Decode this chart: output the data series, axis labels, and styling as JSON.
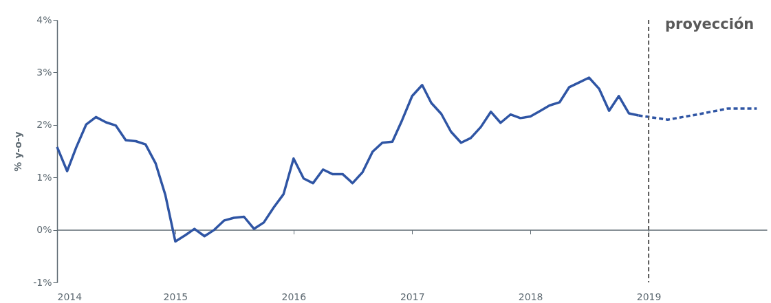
{
  "chart_data": {
    "type": "line",
    "ylabel": "% y-o-y",
    "xlim": [
      "2014-01",
      "2020-01"
    ],
    "xticks": [
      "2014",
      "2015",
      "2016",
      "2017",
      "2018",
      "2019"
    ],
    "ylim": [
      -1,
      4
    ],
    "yticks": [
      {
        "value": -1,
        "label": "-1%"
      },
      {
        "value": 0,
        "label": "0%"
      },
      {
        "value": 1,
        "label": "1%"
      },
      {
        "value": 2,
        "label": "2%"
      },
      {
        "value": 3,
        "label": "3%"
      },
      {
        "value": 4,
        "label": "4%"
      }
    ],
    "grid": false,
    "legend": false,
    "marker": "none",
    "ref_lines": [
      {
        "axis": "x",
        "value": "2019-01",
        "label": "proyección",
        "color": "#595959",
        "line_style": "dashed"
      }
    ],
    "series": [
      {
        "color": "#2f55a4",
        "line_style": "solid",
        "x": [
          "2014-01",
          "2014-02",
          "2014-03",
          "2014-04",
          "2014-05",
          "2014-06",
          "2014-07",
          "2014-08",
          "2014-09",
          "2014-10",
          "2014-11",
          "2014-12",
          "2015-01",
          "2015-02",
          "2015-03",
          "2015-04",
          "2015-05",
          "2015-06",
          "2015-07",
          "2015-08",
          "2015-09",
          "2015-10",
          "2015-11",
          "2015-12",
          "2016-01",
          "2016-02",
          "2016-03",
          "2016-04",
          "2016-05",
          "2016-06",
          "2016-07",
          "2016-08",
          "2016-09",
          "2016-10",
          "2016-11",
          "2016-12",
          "2017-01",
          "2017-02",
          "2017-03",
          "2017-04",
          "2017-05",
          "2017-06",
          "2017-07",
          "2017-08",
          "2017-09",
          "2017-10",
          "2017-11",
          "2017-12",
          "2018-01",
          "2018-02",
          "2018-03",
          "2018-04",
          "2018-05",
          "2018-06",
          "2018-07",
          "2018-08",
          "2018-09",
          "2018-10",
          "2018-11",
          "2018-12"
        ],
        "values": [
          1.58,
          1.12,
          1.57,
          2.01,
          2.15,
          2.05,
          1.99,
          1.71,
          1.69,
          1.63,
          1.27,
          0.67,
          -0.22,
          -0.1,
          0.02,
          -0.12,
          0.0,
          0.18,
          0.23,
          0.25,
          0.02,
          0.14,
          0.43,
          0.68,
          1.36,
          0.98,
          0.89,
          1.15,
          1.06,
          1.06,
          0.89,
          1.1,
          1.49,
          1.66,
          1.68,
          2.09,
          2.55,
          2.76,
          2.42,
          2.21,
          1.87,
          1.66,
          1.75,
          1.96,
          2.25,
          2.04,
          2.2,
          2.13,
          2.16,
          2.27,
          2.37,
          2.43,
          2.72,
          2.81,
          2.9,
          2.69,
          2.27,
          2.55,
          2.22,
          2.18
        ]
      },
      {
        "color": "#2f55a4",
        "line_style": "dashed",
        "x": [
          "2018-12",
          "2019-03",
          "2019-06",
          "2019-09",
          "2019-12"
        ],
        "values": [
          2.18,
          2.1,
          2.2,
          2.31,
          2.31
        ]
      }
    ]
  }
}
